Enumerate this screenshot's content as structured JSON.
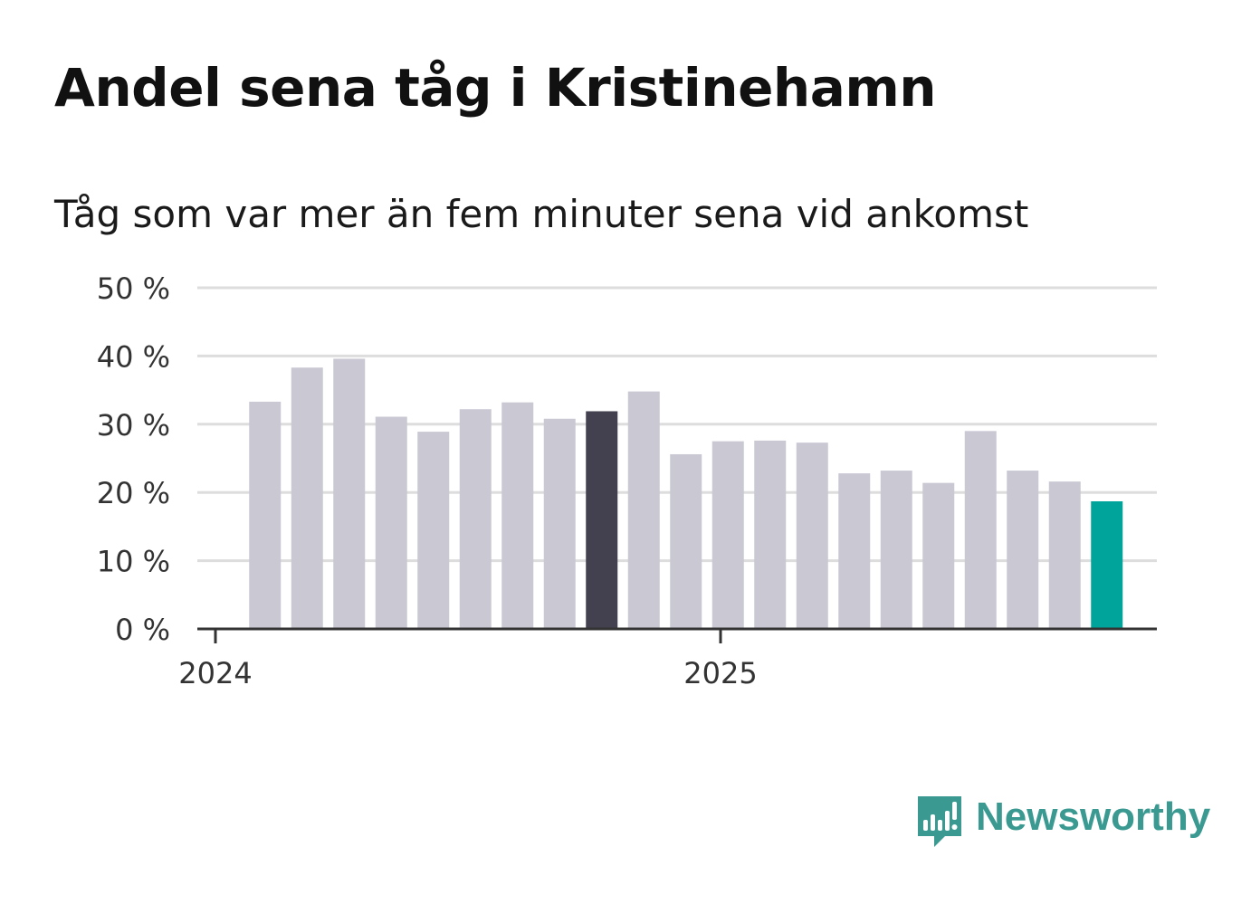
{
  "header": {
    "title": "Andel sena tåg i Kristinehamn",
    "subtitle": "Tåg som var mer än fem minuter sena vid ankomst"
  },
  "brand": {
    "name": "Newsworthy",
    "icon": "newsworthy-logo-icon",
    "color": "#3a9a92"
  },
  "colors": {
    "bar_default": "#c9c8d3",
    "bar_highlight": "#43414f",
    "bar_latest": "#00a49a",
    "grid": "#dddddd",
    "axis": "#333333"
  },
  "chart_data": {
    "type": "bar",
    "title": "Andel sena tåg i Kristinehamn",
    "subtitle": "Tåg som var mer än fem minuter sena vid ankomst",
    "xlabel": "",
    "ylabel": "",
    "unit": "%",
    "ylim": [
      0,
      50
    ],
    "yticks": [
      0,
      10,
      20,
      30,
      40,
      50
    ],
    "ytick_labels": [
      "0 %",
      "10 %",
      "20 %",
      "30 %",
      "40 %",
      "50 %"
    ],
    "categories": [
      "2024-01",
      "2024-02",
      "2024-03",
      "2024-04",
      "2024-05",
      "2024-06",
      "2024-07",
      "2024-08",
      "2024-09",
      "2024-10",
      "2024-11",
      "2024-12",
      "2025-01",
      "2025-02",
      "2025-03",
      "2025-04",
      "2025-05",
      "2025-06",
      "2025-07",
      "2025-08",
      "2025-09",
      "2025-10"
    ],
    "values": [
      null,
      33.3,
      38.3,
      39.6,
      31.1,
      28.9,
      32.2,
      33.2,
      30.8,
      31.9,
      34.8,
      25.6,
      27.5,
      27.6,
      27.3,
      22.8,
      23.2,
      21.4,
      29.0,
      23.2,
      21.6,
      18.7
    ],
    "highlight": {
      "index": 9,
      "role": "highlight"
    },
    "latest": {
      "index": 21,
      "role": "latest"
    },
    "x_ticks": [
      {
        "index": 0,
        "label": "2024"
      },
      {
        "index": 12,
        "label": "2025"
      }
    ],
    "grid": true,
    "legend": "none"
  }
}
